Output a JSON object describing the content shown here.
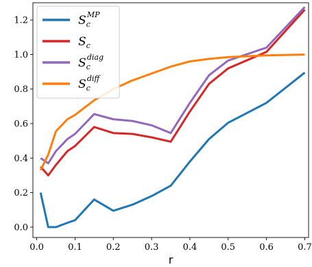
{
  "chart_data": {
    "type": "line",
    "title": "",
    "xlabel": "r",
    "ylabel": "",
    "xlim": [
      -0.01,
      0.71
    ],
    "ylim": [
      -0.06,
      1.3
    ],
    "xticks": [
      0.0,
      0.1,
      0.2,
      0.3,
      0.4,
      0.5,
      0.6,
      0.7
    ],
    "xtick_labels": [
      "0.0",
      "0.1",
      "0.2",
      "0.3",
      "0.4",
      "0.5",
      "0.6",
      "0.7"
    ],
    "yticks": [
      0.0,
      0.2,
      0.4,
      0.6,
      0.8,
      1.0,
      1.2
    ],
    "ytick_labels": [
      "0.0",
      "0.2",
      "0.4",
      "0.6",
      "0.8",
      "1.0",
      "1.2"
    ],
    "grid": false,
    "legend_position": "top-left",
    "x": [
      0.01,
      0.03,
      0.05,
      0.08,
      0.1,
      0.15,
      0.2,
      0.25,
      0.3,
      0.35,
      0.4,
      0.45,
      0.5,
      0.6,
      0.7
    ],
    "series": [
      {
        "name": "S_c^MP",
        "legend_base": "S",
        "legend_sub": "c",
        "legend_sup": "MP",
        "color": "#1f77b4",
        "values": [
          0.2,
          0.0,
          0.0,
          0.025,
          0.04,
          0.16,
          0.095,
          0.13,
          0.18,
          0.24,
          0.38,
          0.51,
          0.605,
          0.72,
          0.895
        ]
      },
      {
        "name": "S_c",
        "legend_base": "S",
        "legend_sub": "c",
        "legend_sup": "",
        "color": "#d62728",
        "values": [
          0.35,
          0.3,
          0.36,
          0.44,
          0.47,
          0.58,
          0.545,
          0.54,
          0.52,
          0.495,
          0.67,
          0.83,
          0.92,
          1.015,
          1.26
        ]
      },
      {
        "name": "S_c^diag",
        "legend_base": "S",
        "legend_sub": "c",
        "legend_sup": "diag",
        "color": "#9467bd",
        "values": [
          0.4,
          0.37,
          0.44,
          0.51,
          0.54,
          0.655,
          0.625,
          0.615,
          0.59,
          0.545,
          0.72,
          0.88,
          0.965,
          1.04,
          1.275
        ]
      },
      {
        "name": "S_c^diff",
        "legend_base": "S",
        "legend_sub": "c",
        "legend_sup": "diff",
        "color": "#ff7f0e",
        "values": [
          0.33,
          0.42,
          0.555,
          0.625,
          0.65,
          0.735,
          0.8,
          0.85,
          0.89,
          0.93,
          0.96,
          0.975,
          0.985,
          0.995,
          1.0
        ]
      }
    ]
  }
}
